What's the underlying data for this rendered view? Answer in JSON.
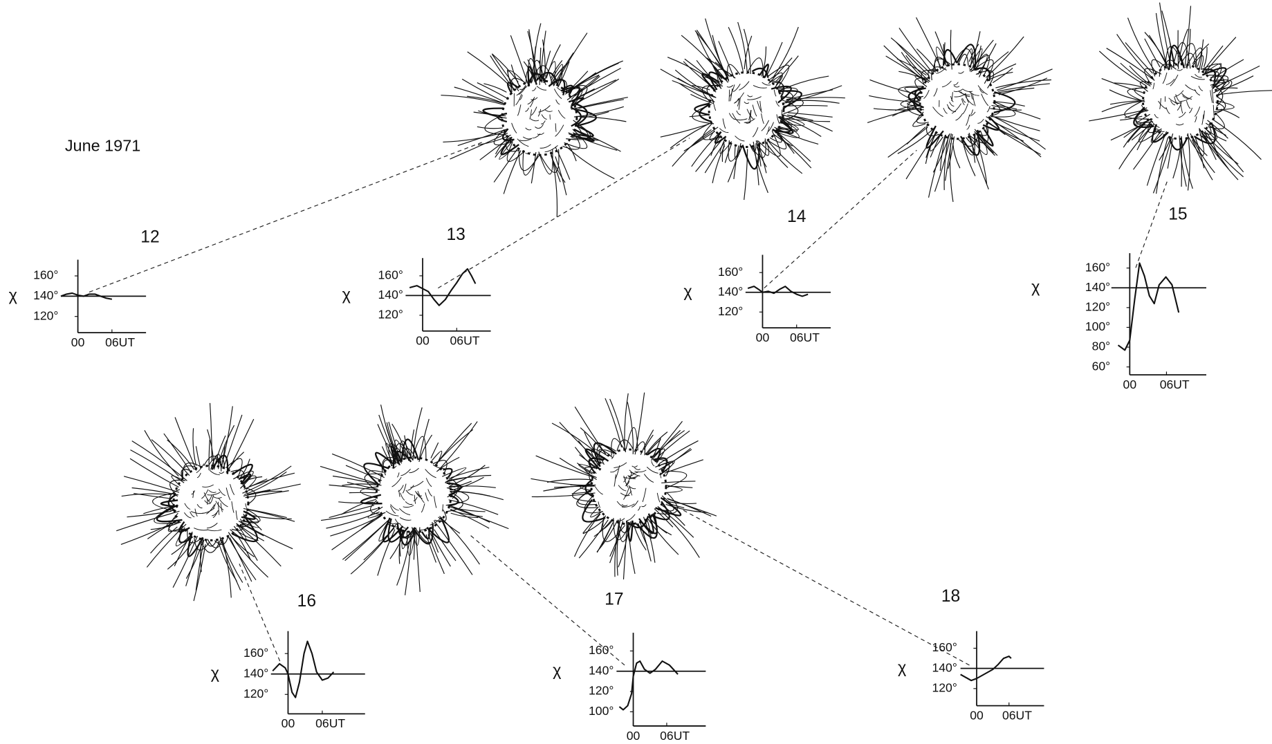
{
  "figure_label": "June 1971",
  "chart_data": [
    {
      "type": "line",
      "title": "12",
      "y_label": "χ",
      "color": "#111",
      "x": [
        -3,
        -2,
        -1,
        0,
        1,
        2,
        3,
        4,
        5,
        6
      ],
      "values": [
        140,
        142,
        143,
        141,
        140,
        142,
        142,
        140,
        138,
        137
      ],
      "xlim": [
        -3,
        12
      ],
      "ylim": [
        104,
        176
      ],
      "axis_crossing": 140,
      "xticks": [
        {
          "value": 0,
          "label": "00"
        },
        {
          "value": 6,
          "label": "06UT"
        }
      ],
      "yticks": [
        {
          "value": 120,
          "label": "120°"
        },
        {
          "value": 140,
          "label": "140°"
        },
        {
          "value": 160,
          "label": "160°"
        }
      ]
    },
    {
      "type": "line",
      "title": "13",
      "y_label": "χ",
      "color": "#111",
      "x": [
        -2.3,
        -1,
        0,
        1,
        2,
        2.9,
        4,
        5,
        6,
        7,
        7.9,
        8.6,
        9.3
      ],
      "values": [
        148,
        150,
        147,
        144,
        136,
        130,
        136,
        145,
        153,
        162,
        167,
        160,
        152
      ],
      "xlim": [
        -3,
        12
      ],
      "ylim": [
        104,
        178
      ],
      "axis_crossing": 140,
      "xticks": [
        {
          "value": 0,
          "label": "00"
        },
        {
          "value": 6,
          "label": "06UT"
        }
      ],
      "yticks": [
        {
          "value": 120,
          "label": "120°"
        },
        {
          "value": 140,
          "label": "140°"
        },
        {
          "value": 160,
          "label": "160°"
        }
      ]
    },
    {
      "type": "line",
      "title": "14",
      "y_label": "χ",
      "color": "#111",
      "x": [
        -2.6,
        -1.5,
        -0.7,
        0,
        1,
        2,
        3,
        4,
        5,
        6,
        7,
        8
      ],
      "values": [
        144,
        146,
        143,
        140,
        141,
        139,
        143,
        146,
        141,
        138,
        136,
        138
      ],
      "xlim": [
        -3,
        12
      ],
      "ylim": [
        104,
        178
      ],
      "axis_crossing": 140,
      "xticks": [
        {
          "value": 0,
          "label": "00"
        },
        {
          "value": 6,
          "label": "06UT"
        }
      ],
      "yticks": [
        {
          "value": 120,
          "label": "120°"
        },
        {
          "value": 140,
          "label": "140°"
        },
        {
          "value": 160,
          "label": "160°"
        }
      ]
    },
    {
      "type": "line",
      "title": "15",
      "y_label": "χ",
      "color": "#111",
      "x": [
        -1.9,
        -0.8,
        0,
        0.8,
        1.6,
        2.4,
        3.2,
        4,
        4.8,
        5.9,
        6.9,
        8
      ],
      "values": [
        82,
        77,
        87,
        128,
        165,
        152,
        132,
        124,
        143,
        151,
        143,
        115
      ],
      "xlim": [
        -3,
        12.5
      ],
      "ylim": [
        52,
        175
      ],
      "axis_crossing": 140,
      "xticks": [
        {
          "value": 0,
          "label": "00"
        },
        {
          "value": 6,
          "label": "06UT"
        }
      ],
      "yticks": [
        {
          "value": 60,
          "label": "60°"
        },
        {
          "value": 80,
          "label": "80°"
        },
        {
          "value": 100,
          "label": "100°"
        },
        {
          "value": 120,
          "label": "120°"
        },
        {
          "value": 140,
          "label": "140°"
        },
        {
          "value": 160,
          "label": "160°"
        }
      ]
    },
    {
      "type": "line",
      "title": "16",
      "y_label": "χ",
      "color": "#111",
      "x": [
        -2.7,
        -1.5,
        -0.5,
        0,
        0.7,
        1.3,
        2,
        2.8,
        3.4,
        4.2,
        5,
        6,
        7,
        8
      ],
      "values": [
        143,
        150,
        146,
        140,
        122,
        117,
        132,
        160,
        172,
        160,
        142,
        134,
        136,
        142
      ],
      "xlim": [
        -3,
        13.5
      ],
      "ylim": [
        101,
        182
      ],
      "axis_crossing": 140,
      "xticks": [
        {
          "value": 0,
          "label": "00"
        },
        {
          "value": 6,
          "label": "06UT"
        }
      ],
      "yticks": [
        {
          "value": 120,
          "label": "120°"
        },
        {
          "value": 140,
          "label": "140°"
        },
        {
          "value": 160,
          "label": "160°"
        }
      ]
    },
    {
      "type": "line",
      "title": "17",
      "y_label": "χ",
      "color": "#111",
      "x": [
        -2.5,
        -1.8,
        -1,
        -0.3,
        0,
        0.6,
        1.2,
        2,
        3,
        4,
        5.2,
        6.5,
        7.5,
        8
      ],
      "values": [
        105,
        102,
        106,
        118,
        135,
        148,
        150,
        142,
        138,
        142,
        150,
        146,
        140,
        137
      ],
      "xlim": [
        -3,
        13
      ],
      "ylim": [
        86,
        178
      ],
      "axis_crossing": 140,
      "xticks": [
        {
          "value": 0,
          "label": "00"
        },
        {
          "value": 6,
          "label": "06UT"
        }
      ],
      "yticks": [
        {
          "value": 100,
          "label": "100°"
        },
        {
          "value": 120,
          "label": "120°"
        },
        {
          "value": 140,
          "label": "140°"
        },
        {
          "value": 160,
          "label": "160°"
        }
      ]
    },
    {
      "type": "line",
      "title": "18",
      "y_label": "χ",
      "color": "#111",
      "x": [
        -3,
        -2,
        -1,
        0,
        1,
        2,
        3,
        4,
        5,
        6,
        6.4
      ],
      "values": [
        134,
        131,
        128,
        130,
        133,
        136,
        139,
        144,
        150,
        152,
        150
      ],
      "xlim": [
        -3,
        12.5
      ],
      "ylim": [
        103,
        177
      ],
      "axis_crossing": 140,
      "xticks": [
        {
          "value": 0,
          "label": "00"
        },
        {
          "value": 6,
          "label": "06UT"
        }
      ],
      "yticks": [
        {
          "value": 120,
          "label": "120°"
        },
        {
          "value": 140,
          "label": "140°"
        },
        {
          "value": 160,
          "label": "160°"
        }
      ]
    }
  ]
}
